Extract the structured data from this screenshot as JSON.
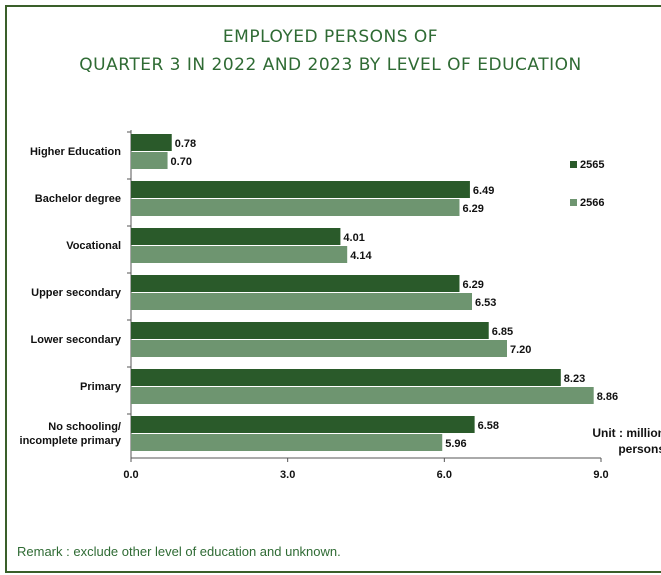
{
  "title_line1": "EMPLOYED PERSONS OF",
  "title_line2": "QUARTER 3 IN 2022 AND 2023 BY LEVEL OF EDUCATION",
  "unit_line1": "Unit : million",
  "unit_line2": "persons",
  "remark": "Remark : exclude other level of education and unknown.",
  "colors": {
    "series_2565": "#2a5a2a",
    "series_2566": "#6e9570",
    "title": "#2f6b34"
  },
  "chart_data": {
    "type": "bar",
    "orientation": "horizontal",
    "categories": [
      "Higher Education",
      "Bachelor degree",
      "Vocational",
      "Upper secondary",
      "Lower secondary",
      "Primary",
      "No schooling/ incomplete primary"
    ],
    "category_lines": [
      [
        "Higher Education"
      ],
      [
        "Bachelor degree"
      ],
      [
        "Vocational"
      ],
      [
        "Upper secondary"
      ],
      [
        "Lower secondary"
      ],
      [
        "Primary"
      ],
      [
        "No schooling/",
        "incomplete primary"
      ]
    ],
    "series": [
      {
        "name": "2565",
        "values": [
          0.78,
          6.49,
          4.01,
          6.29,
          6.85,
          8.23,
          6.58
        ],
        "labels": [
          "0.78",
          "6.49",
          "4.01",
          "6.29",
          "6.85",
          "8.23",
          "6.58"
        ]
      },
      {
        "name": "2566",
        "values": [
          0.7,
          6.29,
          4.14,
          6.53,
          7.2,
          8.86,
          5.96
        ],
        "labels": [
          "0.70",
          "6.29",
          "4.14",
          "6.53",
          "7.20",
          "8.86",
          "5.96"
        ]
      }
    ],
    "xlim": [
      0,
      9
    ],
    "xticks": [
      0,
      3,
      6,
      9
    ],
    "xtick_labels": [
      "0.0",
      "3.0",
      "6.0",
      "9.0"
    ],
    "grid": false,
    "legend_position": "right"
  }
}
